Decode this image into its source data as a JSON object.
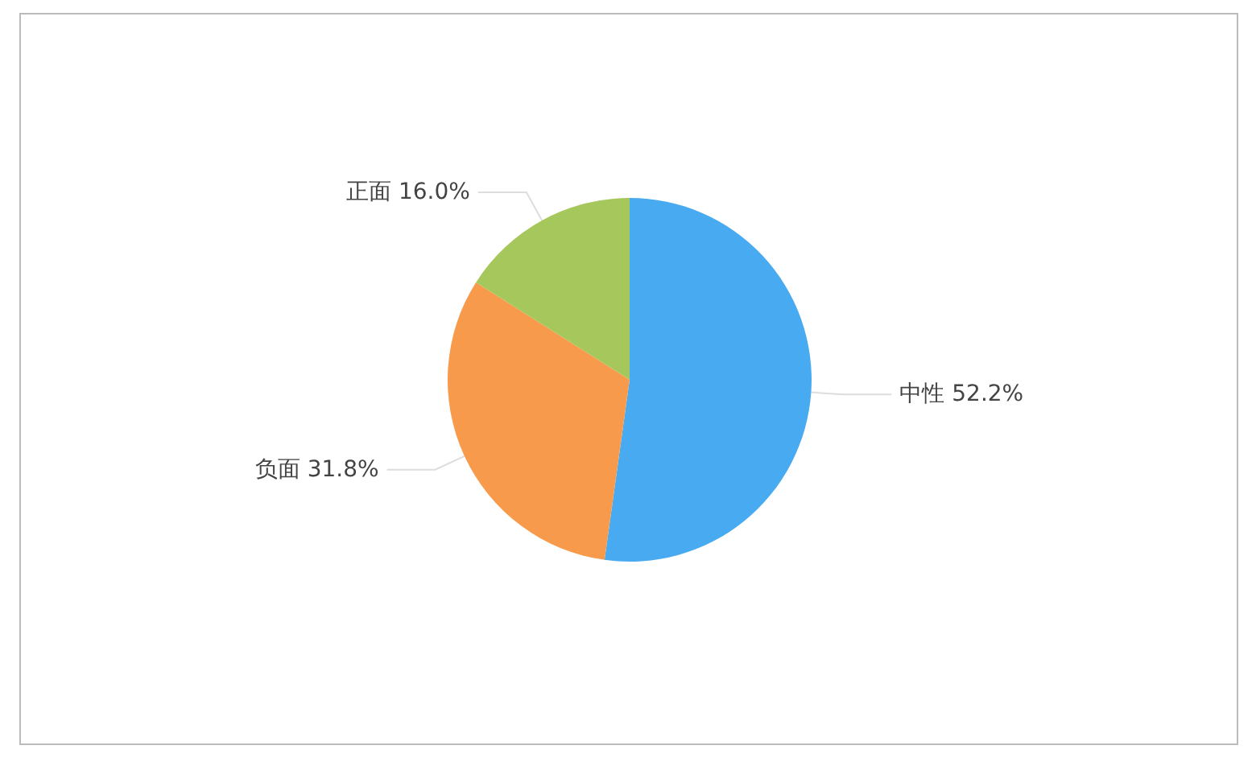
{
  "chart_data": {
    "type": "pie",
    "categories": [
      "中性",
      "负面",
      "正面"
    ],
    "values": [
      52.2,
      31.8,
      16.0
    ],
    "value_labels": [
      "52.2%",
      "31.8%",
      "16.0%"
    ],
    "colors": [
      "#48aaf0",
      "#f89a4b",
      "#a6c75b"
    ],
    "legend": false
  }
}
